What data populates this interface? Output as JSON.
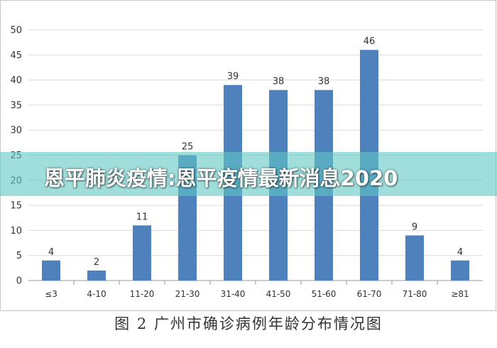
{
  "chart_data": {
    "type": "bar",
    "categories": [
      "≤3",
      "4-10",
      "11-20",
      "21-30",
      "31-40",
      "41-50",
      "51-60",
      "61-70",
      "71-80",
      "≥81"
    ],
    "values": [
      4,
      2,
      11,
      25,
      39,
      38,
      38,
      46,
      9,
      4
    ],
    "ylim": [
      0,
      50
    ],
    "yticks": [
      0,
      5,
      10,
      15,
      20,
      25,
      30,
      35,
      40,
      45,
      50
    ],
    "grid": true,
    "bar_color": "#4f81bd"
  },
  "caption": "图 2  广州市确诊病例年龄分布情况图",
  "overlay": {
    "title": "恩平肺炎疫情:恩平疫情最新消息2020",
    "band_color": "#60c8c4"
  }
}
